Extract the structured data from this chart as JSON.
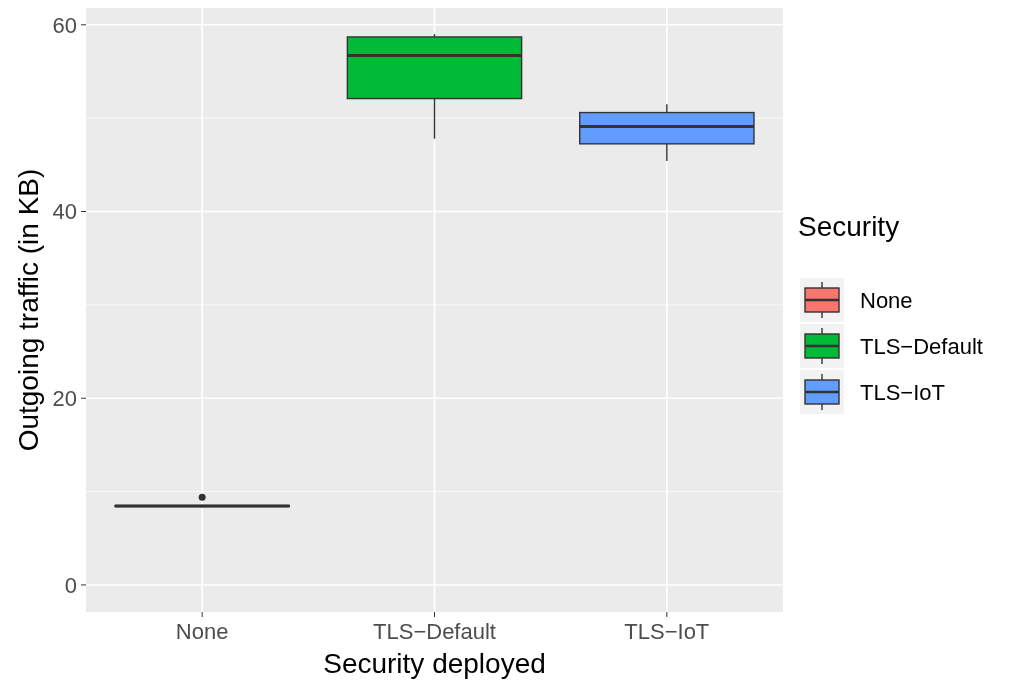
{
  "chart_data": {
    "type": "box",
    "xlabel": "Security deployed",
    "ylabel": "Outgoing traffic (in KB)",
    "legend_title": "Security",
    "categories": [
      "None",
      "TLS−Default",
      "TLS−IoT"
    ],
    "series": [
      {
        "name": "None",
        "color": "#f8766d",
        "boxes": [
          {
            "low": 8.3,
            "q1": 8.4,
            "median": 8.45,
            "q3": 8.5,
            "high": 8.6,
            "outliers": [
              9.4
            ]
          },
          null,
          null
        ]
      },
      {
        "name": "TLS−Default",
        "color": "#00ba38",
        "boxes": [
          null,
          {
            "low": 47.8,
            "q1": 52.1,
            "median": 56.7,
            "q3": 58.7,
            "high": 59.0
          },
          null
        ]
      },
      {
        "name": "TLS−IoT",
        "color": "#619cff",
        "boxes": [
          null,
          null,
          {
            "low": 45.4,
            "q1": 47.25,
            "median": 49.1,
            "q3": 50.6,
            "high": 51.5
          }
        ]
      }
    ],
    "ylim": [
      -2.9,
      61.8
    ],
    "yticks": [
      0,
      20,
      40,
      60
    ],
    "grid": true,
    "legend": "right"
  }
}
